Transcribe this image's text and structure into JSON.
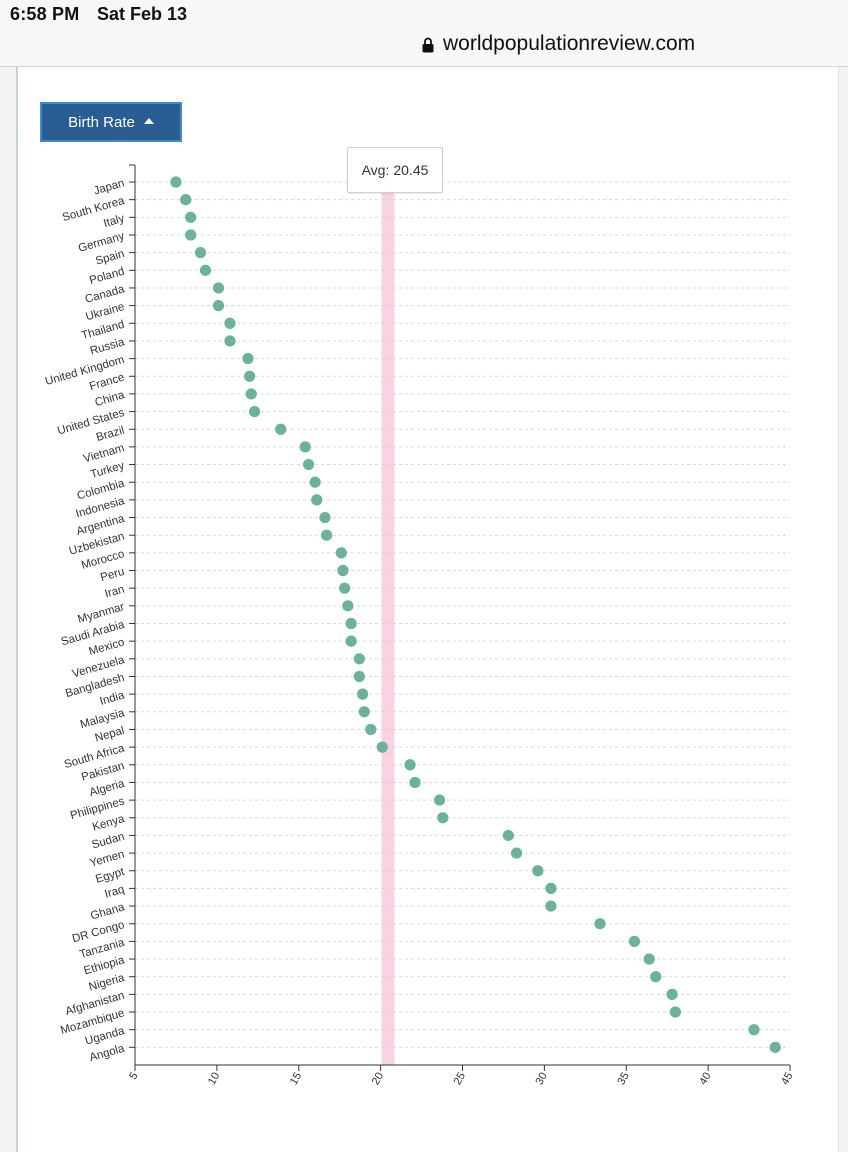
{
  "status_bar": {
    "time": "6:58 PM",
    "date": "Sat Feb 13"
  },
  "browser": {
    "url": "worldpopulationreview.com",
    "lock_icon": "lock-icon"
  },
  "sort_button": {
    "label": "Birth Rate",
    "icon": "caret-up-icon",
    "color": "#2a5d91"
  },
  "average": {
    "label": "Avg:",
    "value": "20.45",
    "band_color": "#f9d3e3"
  },
  "chart_data": {
    "type": "scatter",
    "title": "",
    "xlabel": "",
    "ylabel": "",
    "xlim": [
      5,
      45
    ],
    "x_ticks": [
      "5",
      "10",
      "15",
      "20",
      "25",
      "30",
      "35",
      "40",
      "45"
    ],
    "grid": true,
    "point_color": "#67b39b",
    "average_value": 20.45,
    "categories": [
      "Japan",
      "South Korea",
      "Italy",
      "Germany",
      "Spain",
      "Poland",
      "Canada",
      "Ukraine",
      "Thailand",
      "Russia",
      "United Kingdom",
      "France",
      "China",
      "United States",
      "Brazil",
      "Vietnam",
      "Turkey",
      "Colombia",
      "Indonesia",
      "Argentina",
      "Uzbekistan",
      "Morocco",
      "Peru",
      "Iran",
      "Myanmar",
      "Saudi Arabia",
      "Mexico",
      "Venezuela",
      "Bangladesh",
      "India",
      "Malaysia",
      "Nepal",
      "South Africa",
      "Pakistan",
      "Algeria",
      "Philippines",
      "Kenya",
      "Sudan",
      "Yemen",
      "Egypt",
      "Iraq",
      "Ghana",
      "DR Congo",
      "Tanzania",
      "Ethiopia",
      "Nigeria",
      "Afghanistan",
      "Mozambique",
      "Uganda",
      "Angola"
    ],
    "values": [
      7.5,
      8.1,
      8.4,
      8.4,
      9.0,
      9.3,
      10.1,
      10.1,
      10.8,
      10.8,
      11.9,
      12.0,
      12.1,
      12.3,
      13.9,
      15.4,
      15.6,
      16.0,
      16.1,
      16.6,
      16.7,
      17.6,
      17.7,
      17.8,
      18.0,
      18.2,
      18.2,
      18.7,
      18.7,
      18.9,
      19.0,
      19.4,
      20.1,
      21.8,
      22.1,
      23.6,
      23.8,
      27.8,
      28.3,
      29.6,
      30.4,
      30.4,
      33.4,
      35.5,
      36.4,
      36.8,
      37.8,
      38.0,
      42.8,
      44.1
    ]
  }
}
